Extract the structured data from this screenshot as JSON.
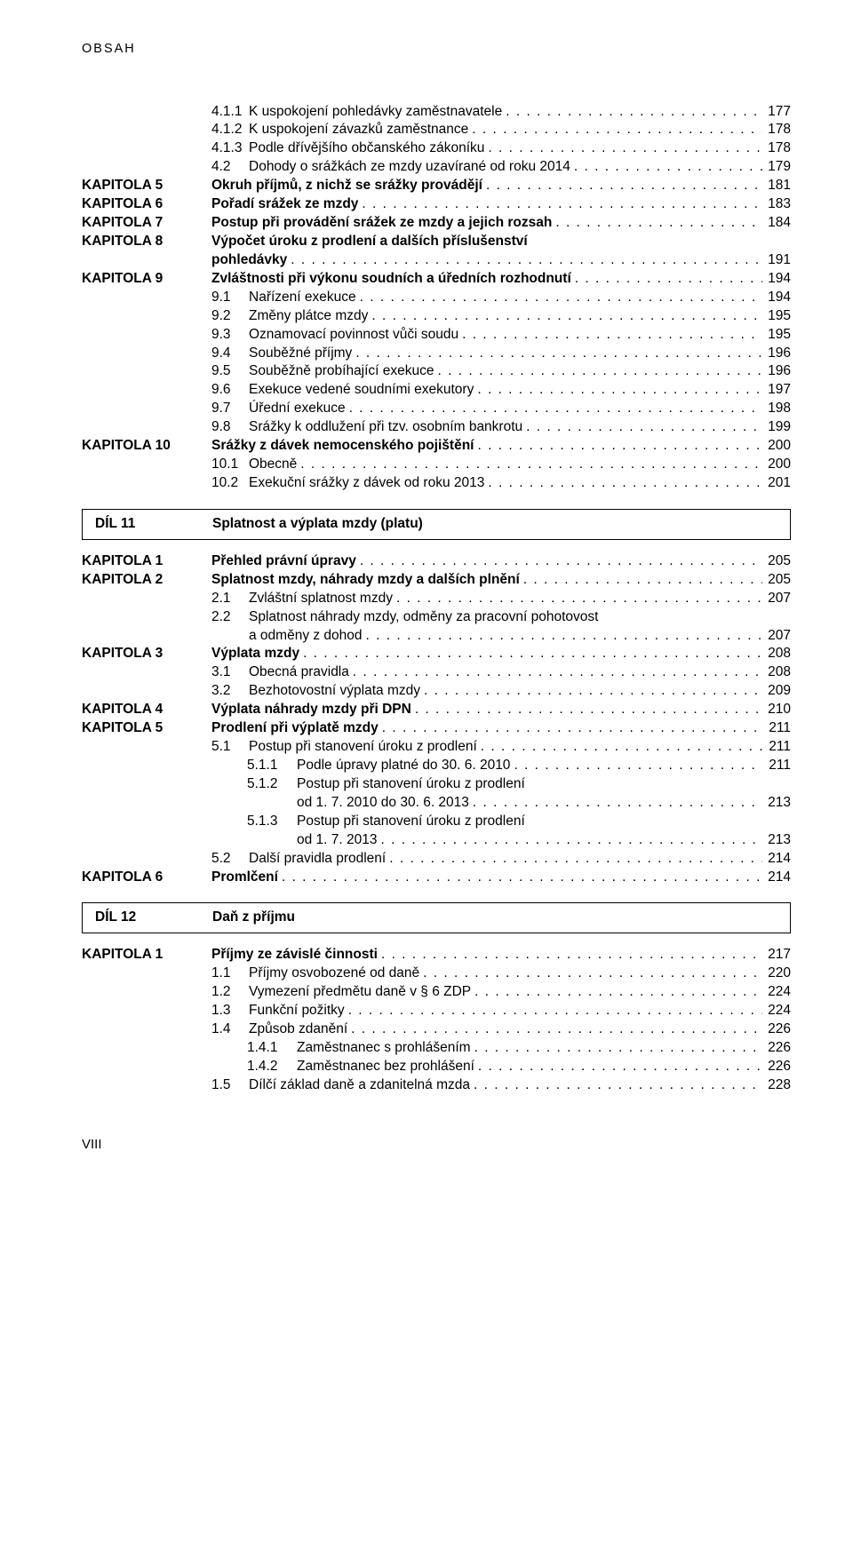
{
  "colors": {
    "text": "#000000",
    "background": "#ffffff",
    "border": "#000000"
  },
  "typography": {
    "base_size_pt": 11.5,
    "bold_weight": 700,
    "normal_weight": 400,
    "family": "Myriad Pro"
  },
  "header": "OBSAH",
  "rows": [
    {
      "indent": "sub",
      "num": "4.1.1",
      "text": "K uspokojení pohledávky zaměstnavatele",
      "page": "177"
    },
    {
      "indent": "sub",
      "num": "4.1.2",
      "text": "K uspokojení závazků zaměstnance",
      "page": "178"
    },
    {
      "indent": "sub",
      "num": "4.1.3",
      "text": "Podle dřívějšího občanského zákoníku",
      "page": "178"
    },
    {
      "indent": "sub",
      "num": "4.2",
      "text": "Dohody o srážkách ze mzdy uzavírané od roku 2014",
      "page": "179"
    },
    {
      "chapter": "KAPITOLA 5",
      "text": "Okruh příjmů, z nichž se srážky provádějí",
      "bold": true,
      "page": "181"
    },
    {
      "chapter": "KAPITOLA 6",
      "text": "Pořadí srážek ze mzdy",
      "bold": true,
      "page": "183"
    },
    {
      "chapter": "KAPITOLA 7",
      "text": "Postup při provádění srážek ze mzdy a jejich rozsah",
      "bold": true,
      "page": "184"
    },
    {
      "chapter": "KAPITOLA 8",
      "text": "Výpočet úroku z prodlení a dalších příslušenství",
      "bold": true,
      "nopage": true
    },
    {
      "indent": "chapcont",
      "text": "pohledávky",
      "bold": true,
      "page": "191"
    },
    {
      "chapter": "KAPITOLA 9",
      "text": "Zvláštnosti při výkonu soudních a úředních rozhodnutí",
      "bold": true,
      "page": "194"
    },
    {
      "indent": "sub",
      "num": "9.1",
      "text": "Nařízení exekuce",
      "page": "194"
    },
    {
      "indent": "sub",
      "num": "9.2",
      "text": "Změny plátce mzdy",
      "page": "195"
    },
    {
      "indent": "sub",
      "num": "9.3",
      "text": "Oznamovací povinnost vůči soudu",
      "page": "195"
    },
    {
      "indent": "sub",
      "num": "9.4",
      "text": "Souběžné příjmy",
      "page": "196"
    },
    {
      "indent": "sub",
      "num": "9.5",
      "text": "Souběžně probíhající exekuce",
      "page": "196"
    },
    {
      "indent": "sub",
      "num": "9.6",
      "text": "Exekuce vedené soudními exekutory",
      "page": "197"
    },
    {
      "indent": "sub",
      "num": "9.7",
      "text": "Úřední exekuce",
      "page": "198"
    },
    {
      "indent": "sub",
      "num": "9.8",
      "text": "Srážky k oddlužení při tzv. osobním bankrotu",
      "page": "199"
    },
    {
      "chapter": "KAPITOLA 10",
      "text": "Srážky z dávek nemocenského pojištění",
      "bold": true,
      "page": "200"
    },
    {
      "indent": "sub",
      "num": "10.1",
      "text": "Obecně",
      "page": "200"
    },
    {
      "indent": "sub",
      "num": "10.2",
      "text": "Exekuční srážky z dávek od roku 2013",
      "page": "201"
    }
  ],
  "divider1": {
    "label": "DÍL 11",
    "title": "Splatnost a výplata mzdy (platu)"
  },
  "rows2": [
    {
      "chapter": "KAPITOLA 1",
      "text": "Přehled právní úpravy",
      "bold": true,
      "page": "205"
    },
    {
      "chapter": "KAPITOLA 2",
      "text": "Splatnost mzdy, náhrady mzdy a dalších plnění",
      "bold": true,
      "page": "205"
    },
    {
      "indent": "sub",
      "num": "2.1",
      "text": "Zvláštní splatnost mzdy",
      "page": "207"
    },
    {
      "indent": "sub",
      "num": "2.2",
      "text": "Splatnost náhrady mzdy, odměny za pracovní pohotovost",
      "nopage": true
    },
    {
      "indent": "subcont",
      "text": "a odměny z dohod",
      "page": "207"
    },
    {
      "chapter": "KAPITOLA 3",
      "text": "Výplata mzdy",
      "bold": true,
      "page": "208"
    },
    {
      "indent": "sub",
      "num": "3.1",
      "text": "Obecná pravidla",
      "page": "208"
    },
    {
      "indent": "sub",
      "num": "3.2",
      "text": "Bezhotovostní výplata mzdy",
      "page": "209"
    },
    {
      "chapter": "KAPITOLA 4",
      "text": "Výplata náhrady mzdy při DPN",
      "bold": true,
      "page": "210"
    },
    {
      "chapter": "KAPITOLA 5",
      "text": "Prodlení při výplatě mzdy",
      "bold": true,
      "page": "211"
    },
    {
      "indent": "sub",
      "num": "5.1",
      "text": "Postup při stanovení úroku z prodlení",
      "page": "211"
    },
    {
      "indent": "sub2",
      "num": "5.1.1",
      "text": "Podle úpravy platné do 30. 6. 2010",
      "page": "211"
    },
    {
      "indent": "sub2",
      "num": "5.1.2",
      "text": "Postup při stanovení úroku z prodlení",
      "nopage": true
    },
    {
      "indent": "sub2cont",
      "text": "od 1. 7. 2010 do 30. 6. 2013",
      "page": "213"
    },
    {
      "indent": "sub2",
      "num": "5.1.3",
      "text": "Postup při stanovení úroku z prodlení",
      "nopage": true
    },
    {
      "indent": "sub2cont",
      "text": "od 1. 7. 2013",
      "page": "213"
    },
    {
      "indent": "sub",
      "num": "5.2",
      "text": "Další pravidla prodlení",
      "page": "214"
    },
    {
      "chapter": "KAPITOLA 6",
      "text": "Promlčení",
      "bold": true,
      "page": "214"
    }
  ],
  "divider2": {
    "label": "DÍL 12",
    "title": "Daň z příjmu"
  },
  "rows3": [
    {
      "chapter": "KAPITOLA 1",
      "text": "Příjmy ze závislé činnosti",
      "bold": true,
      "page": "217"
    },
    {
      "indent": "sub",
      "num": "1.1",
      "text": "Příjmy osvobozené od daně",
      "page": "220"
    },
    {
      "indent": "sub",
      "num": "1.2",
      "text": "Vymezení předmětu daně v § 6 ZDP",
      "page": "224"
    },
    {
      "indent": "sub",
      "num": "1.3",
      "text": "Funkční požitky",
      "page": "224"
    },
    {
      "indent": "sub",
      "num": "1.4",
      "text": "Způsob zdanění",
      "page": "226"
    },
    {
      "indent": "sub2",
      "num": "1.4.1",
      "text": "Zaměstnanec s prohlášením",
      "page": "226"
    },
    {
      "indent": "sub2",
      "num": "1.4.2",
      "text": "Zaměstnanec bez prohlášení",
      "page": "226"
    },
    {
      "indent": "sub",
      "num": "1.5",
      "text": "Dílčí základ daně a zdanitelná mzda",
      "page": "228"
    }
  ],
  "page_number": "VIII"
}
